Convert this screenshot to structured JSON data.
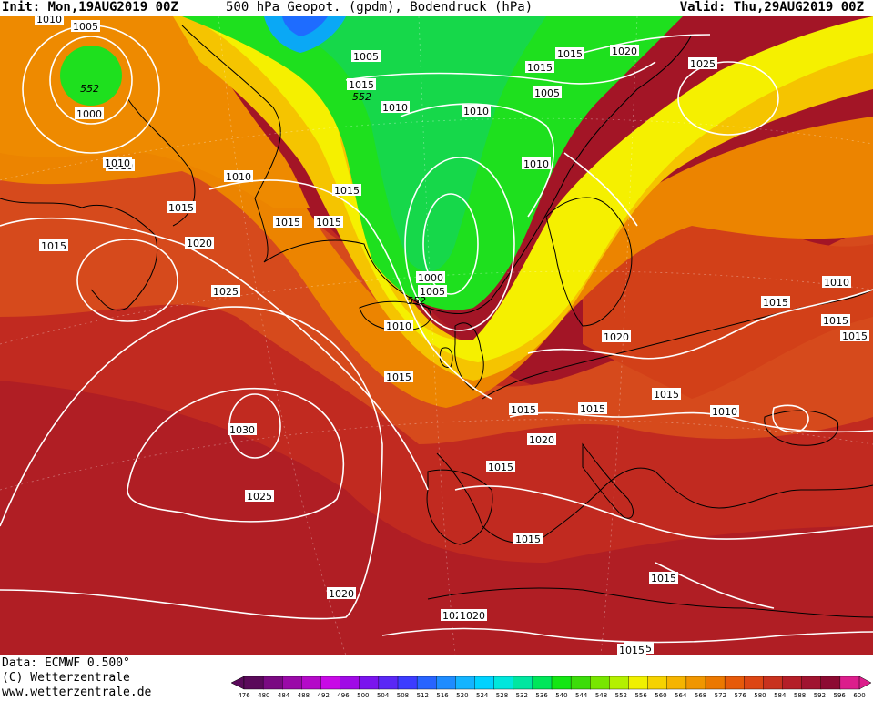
{
  "header": {
    "init": "Init: Mon,19AUG2019 00Z",
    "title": "500 hPa Geopot. (gpdm), Bodendruck (hPa)",
    "valid": "Valid: Thu,29AUG2019 00Z"
  },
  "footer": {
    "data_line": "Data: ECMWF  0.500°",
    "copyright": "(C) Wetterzentrale",
    "website": "www.wetterzentrale.de"
  },
  "colors": {
    "ocean_deep_red": "#a01528",
    "orange_red": "#d84a1e",
    "orange": "#ee8a00",
    "yellow": "#f5f000",
    "green": "#1de01d",
    "blue_low": "#00a0ff",
    "isobar": "#ffffff",
    "coast": "#000000"
  },
  "map": {
    "isobar_labels": [
      {
        "text": "1010"
      },
      {
        "text": "1005"
      },
      {
        "text": "552"
      },
      {
        "text": "1000"
      },
      {
        "text": "1010"
      },
      {
        "text": "1015"
      },
      {
        "text": "1020"
      },
      {
        "text": "1025"
      },
      {
        "text": "1015"
      },
      {
        "text": "1030"
      },
      {
        "text": "1025"
      },
      {
        "text": "1020"
      },
      {
        "text": "1015"
      },
      {
        "text": "1010"
      },
      {
        "text": "1005"
      },
      {
        "text": "1015"
      },
      {
        "text": "552"
      },
      {
        "text": "1010"
      },
      {
        "text": "1015"
      },
      {
        "text": "1010"
      },
      {
        "text": "1015"
      },
      {
        "text": "1005"
      },
      {
        "text": "1015"
      },
      {
        "text": "1010"
      },
      {
        "text": "1000"
      },
      {
        "text": "1005"
      },
      {
        "text": "552"
      },
      {
        "text": "1010"
      },
      {
        "text": "1015"
      },
      {
        "text": "1015"
      },
      {
        "text": "1020"
      },
      {
        "text": "1010"
      },
      {
        "text": "1025"
      },
      {
        "text": "1015"
      },
      {
        "text": "1020"
      },
      {
        "text": "1015"
      },
      {
        "text": "1015"
      },
      {
        "text": "1010"
      },
      {
        "text": "1015"
      },
      {
        "text": "1010"
      },
      {
        "text": "1015"
      },
      {
        "text": "1015"
      },
      {
        "text": "1015"
      },
      {
        "text": "1020"
      },
      {
        "text": "1015"
      },
      {
        "text": "1015"
      },
      {
        "text": "1015"
      },
      {
        "text": "1020"
      },
      {
        "text": "1020"
      },
      {
        "text": "1015"
      }
    ]
  },
  "legend": {
    "scale": [
      "476",
      "480",
      "484",
      "488",
      "492",
      "496",
      "500",
      "504",
      "508",
      "512",
      "516",
      "520",
      "524",
      "528",
      "532",
      "536",
      "540",
      "544",
      "548",
      "552",
      "556",
      "560",
      "564",
      "568",
      "572",
      "576",
      "580",
      "584",
      "588",
      "592",
      "596",
      "600"
    ],
    "colors": [
      "#5a0a5a",
      "#7a0a82",
      "#9a0aa8",
      "#b40ac8",
      "#c80ae6",
      "#a00ae6",
      "#7a14ee",
      "#5a28f5",
      "#3c3cff",
      "#2864ff",
      "#1e8cff",
      "#14b4ff",
      "#00d2ff",
      "#00e6dc",
      "#00e6a0",
      "#00e65a",
      "#14e614",
      "#3cdc0a",
      "#78e600",
      "#b4f000",
      "#f0f000",
      "#f5d200",
      "#f5b400",
      "#f09600",
      "#eb7800",
      "#e65a0a",
      "#dc4614",
      "#c8321e",
      "#b41e28",
      "#a01430",
      "#8c0a32",
      "#dc1e8c"
    ]
  }
}
